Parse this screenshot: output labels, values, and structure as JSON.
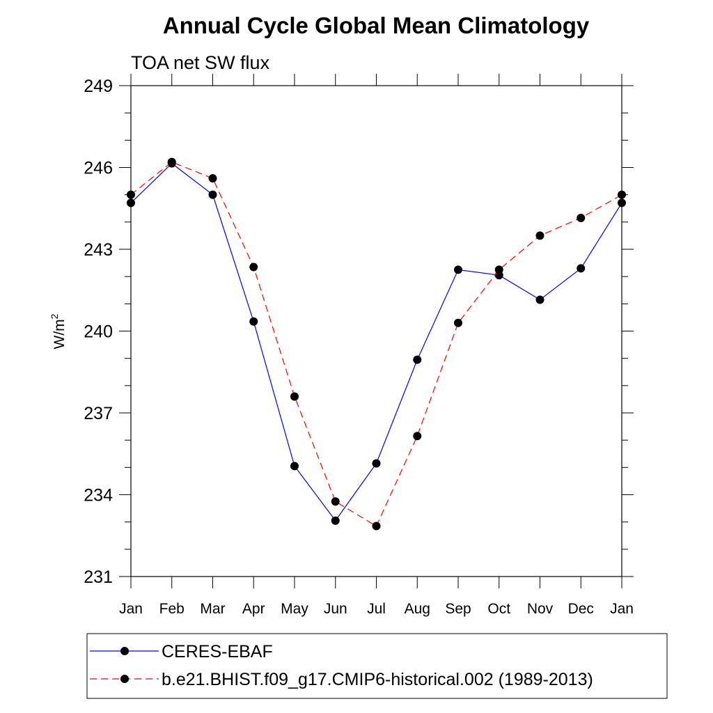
{
  "chart_data": {
    "type": "line",
    "title": "Annual Cycle Global Mean Climatology",
    "subtitle": "TOA net SW flux",
    "ylabel_base": "W/m",
    "ylabel_sup": "2",
    "categories": [
      "Jan",
      "Feb",
      "Mar",
      "Apr",
      "May",
      "Jun",
      "Jul",
      "Aug",
      "Sep",
      "Oct",
      "Nov",
      "Dec",
      "Jan"
    ],
    "ylim": [
      231,
      249
    ],
    "yticks": [
      "231",
      "234",
      "237",
      "240",
      "243",
      "246",
      "249"
    ],
    "series": [
      {
        "name": "CERES-EBAF",
        "color": "#0000ff",
        "dash": "solid",
        "values": [
          244.7,
          246.15,
          245.0,
          240.35,
          235.05,
          233.05,
          235.15,
          238.95,
          242.25,
          242.05,
          241.15,
          242.3,
          244.7
        ]
      },
      {
        "name": "b.e21.BHIST.f09_g17.CMIP6-historical.002 (1989-2013)",
        "color": "#ff0000",
        "dash": "dashed",
        "values": [
          245.0,
          246.2,
          245.6,
          242.35,
          237.6,
          233.75,
          232.85,
          236.15,
          240.3,
          242.25,
          243.5,
          244.15,
          245.0
        ]
      }
    ],
    "legend_position": "bottom"
  }
}
